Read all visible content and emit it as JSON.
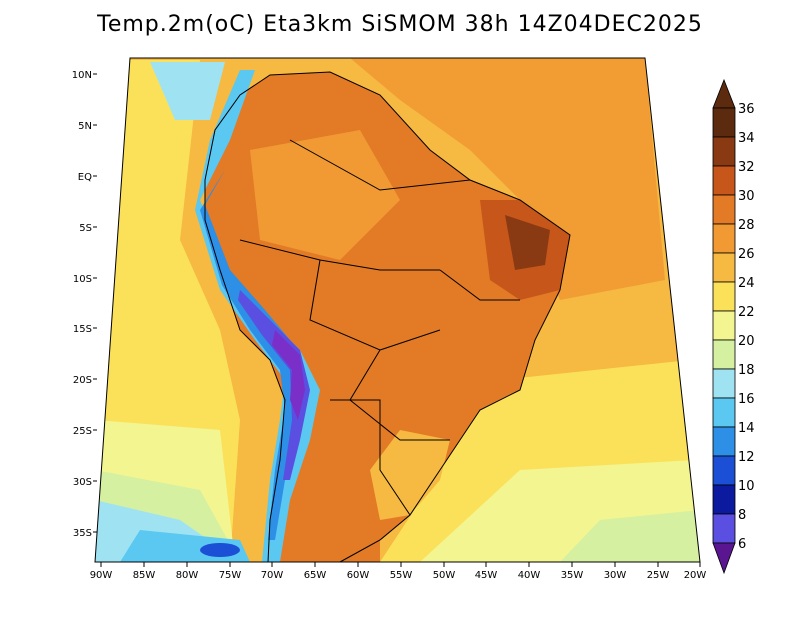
{
  "title": "Temp.2m(oC) Eta3km SiSMOM 38h 14Z04DEC2025",
  "map": {
    "lon_labels": [
      "90W",
      "85W",
      "80W",
      "75W",
      "70W",
      "65W",
      "60W",
      "55W",
      "50W",
      "45W",
      "40W",
      "35W",
      "30W",
      "25W",
      "20W"
    ],
    "lat_labels": [
      "10N",
      "5N",
      "EQ",
      "5S",
      "10S",
      "15S",
      "20S",
      "25S",
      "30S",
      "35S"
    ]
  },
  "colorbar": {
    "labels": [
      "36",
      "34",
      "32",
      "30",
      "28",
      "26",
      "24",
      "22",
      "20",
      "18",
      "16",
      "14",
      "12",
      "10",
      "8",
      "6"
    ],
    "colors": {
      "c36": "#5c2a0e",
      "c34": "#8a3a12",
      "c32": "#c7561a",
      "c30": "#e27a26",
      "c28": "#f19a33",
      "c26": "#f6b941",
      "c24": "#fbe15a",
      "c22": "#f3f591",
      "c20": "#d4f0a0",
      "c18": "#9fe3f2",
      "c16": "#5ac8f0",
      "c14": "#2d8fe6",
      "c12": "#1a4fd6",
      "c10": "#0c1aa0",
      "c8": "#5a4fe0",
      "c6": "#7a2fc8",
      "c_low": "#5a1690"
    }
  }
}
